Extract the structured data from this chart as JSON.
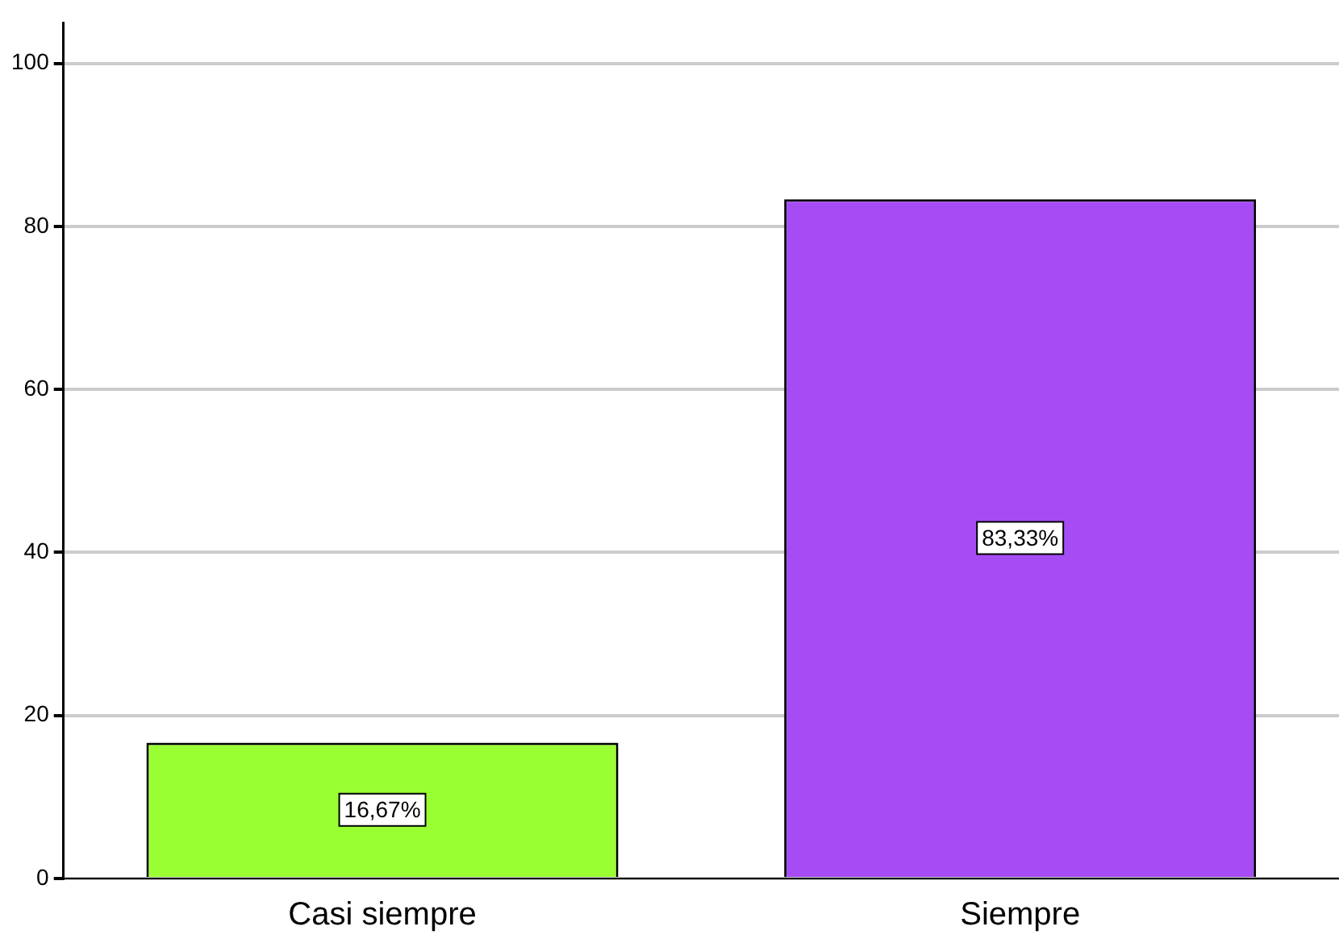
{
  "chart_data": {
    "type": "bar",
    "categories": [
      "Casi siempre",
      "Siempre"
    ],
    "values": [
      16.67,
      83.33
    ],
    "colors": [
      "#99ff33",
      "#a64cf4"
    ],
    "value_labels": [
      "16,67%",
      "83,33%"
    ],
    "ylim": [
      0,
      105
    ],
    "yticks": [
      0,
      20,
      40,
      60,
      80,
      100
    ],
    "grid": "y",
    "legend": false
  }
}
